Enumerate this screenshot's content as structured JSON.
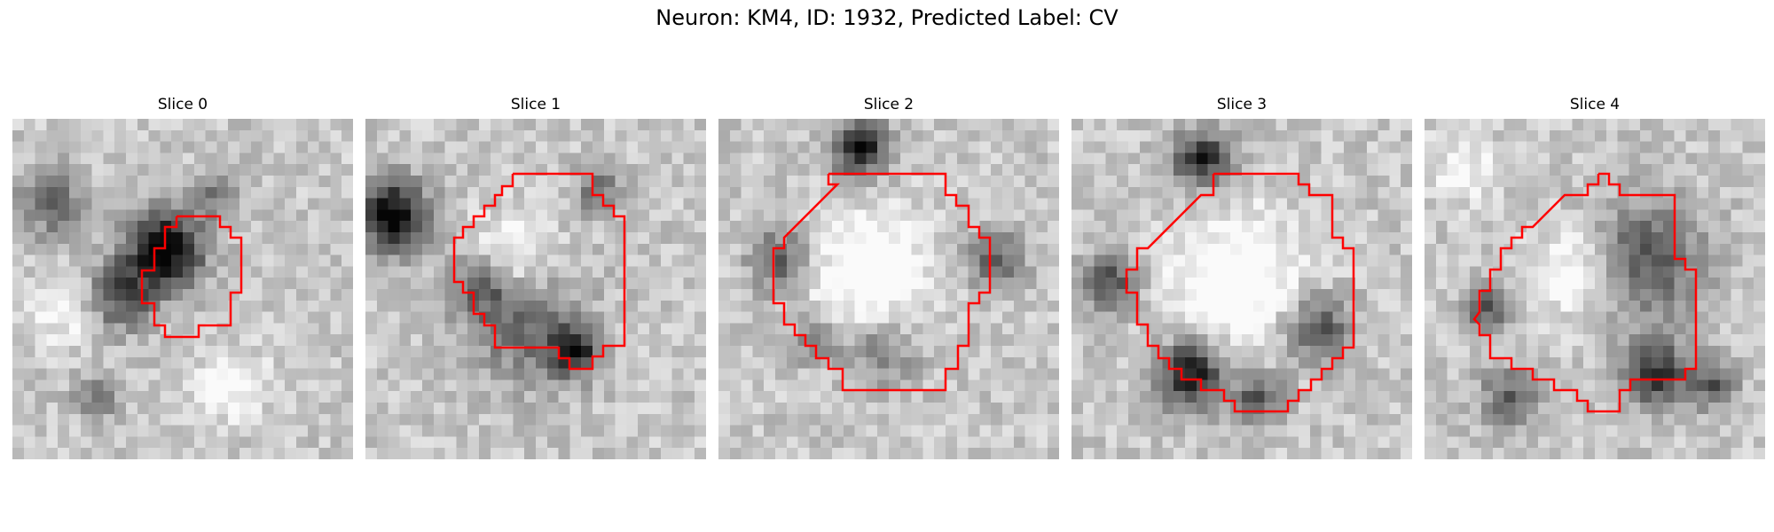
{
  "figure": {
    "title": "Neuron: KM4, ID: 1932, Predicted Label: CV"
  },
  "panels": [
    {
      "title": "Slice 0",
      "outline_color": "#e41a1c"
    },
    {
      "title": "Slice 1",
      "outline_color": "#e41a1c"
    },
    {
      "title": "Slice 2",
      "outline_color": "#e41a1c"
    },
    {
      "title": "Slice 3",
      "outline_color": "#e41a1c"
    },
    {
      "title": "Slice 4",
      "outline_color": "#e41a1c"
    }
  ],
  "colormap": "gray"
}
